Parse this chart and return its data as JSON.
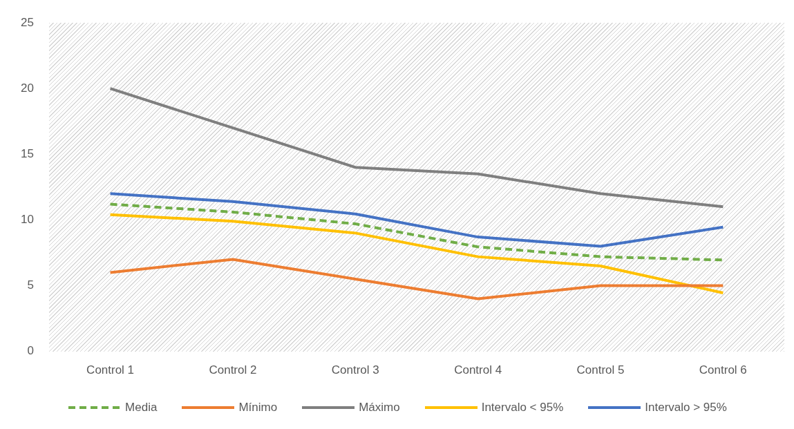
{
  "chart_data": {
    "type": "line",
    "categories": [
      "Control 1",
      "Control 2",
      "Control 3",
      "Control 4",
      "Control 5",
      "Control 6"
    ],
    "series": [
      {
        "name": "Media",
        "color": "#70ad47",
        "line_style": "dashed",
        "values": [
          11.2,
          10.6,
          9.7,
          7.95,
          7.2,
          6.95
        ]
      },
      {
        "name": "Mínimo",
        "color": "#ed7d31",
        "values": [
          6,
          7,
          5.5,
          4,
          5,
          5
        ]
      },
      {
        "name": "Máximo",
        "color": "#7f7f7f",
        "values": [
          20,
          17,
          14,
          13.5,
          12,
          11
        ]
      },
      {
        "name": "Intervalo < 95%",
        "color": "#ffc000",
        "values": [
          10.4,
          9.9,
          9,
          7.2,
          6.5,
          4.45
        ]
      },
      {
        "name": "Intervalo > 95%",
        "color": "#4472c4",
        "values": [
          12,
          11.4,
          10.45,
          8.7,
          8,
          9.45
        ]
      }
    ],
    "ylim": [
      0,
      25
    ],
    "yticks": [
      0,
      5,
      10,
      15,
      20,
      25
    ],
    "grid": false,
    "legend": "bottom",
    "marker": "none"
  }
}
